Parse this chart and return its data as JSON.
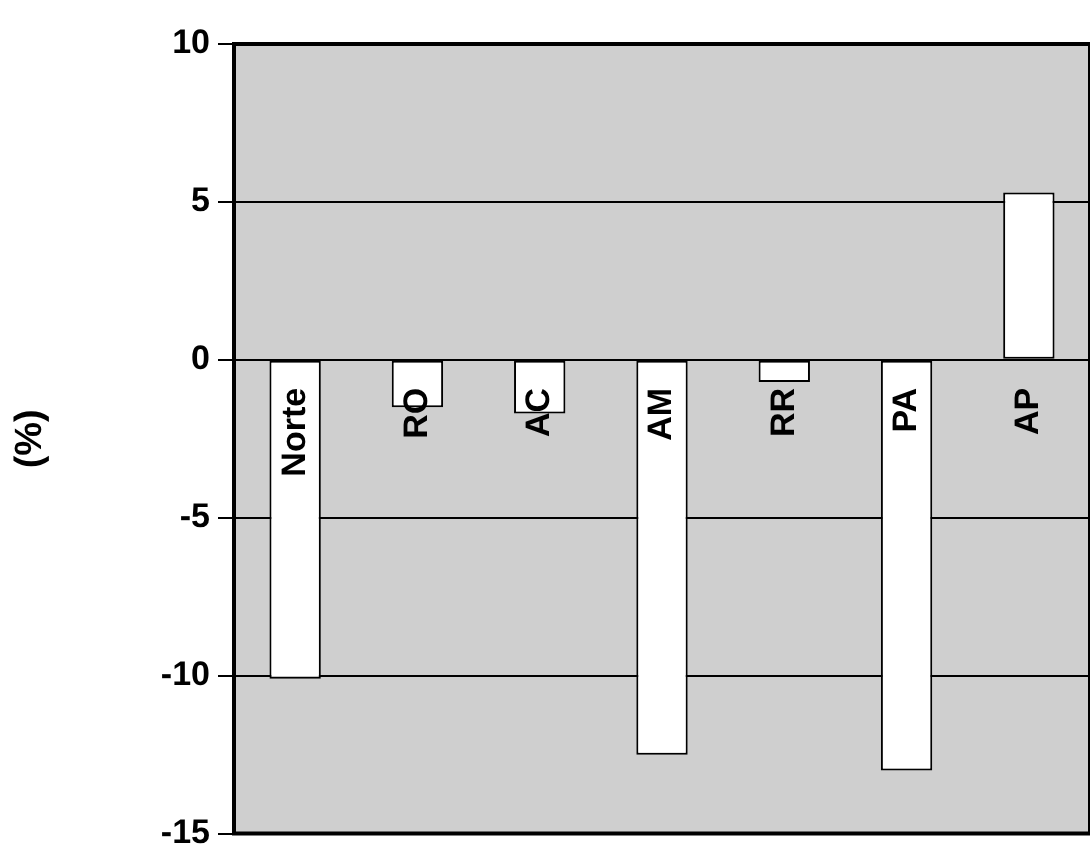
{
  "chart_data": {
    "type": "bar",
    "ylabel": "(%)",
    "categories": [
      "Norte",
      "RO",
      "AC",
      "AM",
      "RR",
      "PA",
      "AP"
    ],
    "values": [
      -10.1,
      -1.5,
      -1.7,
      -12.5,
      -0.7,
      -13.0,
      5.3
    ],
    "color": "#ffffff",
    "ylim": [
      -15,
      10
    ],
    "yticks": [
      -15,
      -10,
      -5,
      0,
      5,
      10
    ],
    "grid": "y",
    "legend": false
  }
}
